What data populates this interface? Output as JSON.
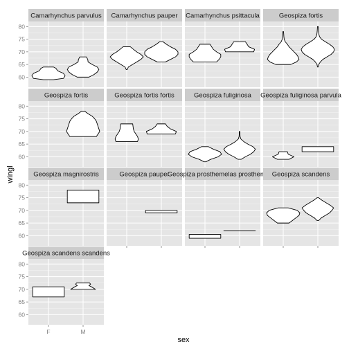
{
  "chart_data": {
    "type": "violin",
    "xlabel": "sex",
    "ylabel": "wingl",
    "categories": [
      "F",
      "M"
    ],
    "ylim": [
      56,
      82
    ],
    "yticks": [
      60,
      65,
      70,
      75,
      80
    ],
    "colors": {
      "panel_bg": "#e5e5e5",
      "strip_bg": "#cccccc",
      "grid_major": "#ffffff",
      "grid_minor": "#f2f2f2",
      "violin_fill": "#ffffff",
      "violin_stroke": "#000000"
    },
    "panels": [
      {
        "species": "Camarhynchus parvulus",
        "violins": {
          "F": {
            "min": 59,
            "max": 64,
            "profile": [
              [
                59,
                0.3
              ],
              [
                59.5,
                0.9
              ],
              [
                60.5,
                1.0
              ],
              [
                61.5,
                0.9
              ],
              [
                62.5,
                0.55
              ],
              [
                63.5,
                0.45
              ],
              [
                64,
                0.3
              ]
            ]
          },
          "M": {
            "min": 60,
            "max": 68,
            "profile": [
              [
                60,
                0.35
              ],
              [
                61,
                0.65
              ],
              [
                62,
                0.85
              ],
              [
                63,
                0.95
              ],
              [
                64,
                0.85
              ],
              [
                65,
                0.55
              ],
              [
                66,
                0.3
              ],
              [
                67,
                0.28
              ],
              [
                68,
                0.2
              ]
            ]
          }
        }
      },
      {
        "species": "Camarhynchus pauper",
        "violins": {
          "F": {
            "min": 63,
            "max": 72,
            "profile": [
              [
                63,
                0.03
              ],
              [
                64,
                0.1
              ],
              [
                65,
                0.35
              ],
              [
                66,
                0.6
              ],
              [
                67,
                0.85
              ],
              [
                68,
                1.0
              ],
              [
                69,
                0.85
              ],
              [
                70,
                0.6
              ],
              [
                71,
                0.4
              ],
              [
                72,
                0.22
              ]
            ]
          },
          "M": {
            "min": 66,
            "max": 74,
            "profile": [
              [
                66,
                0.25
              ],
              [
                67,
                0.55
              ],
              [
                68,
                0.85
              ],
              [
                69,
                1.0
              ],
              [
                70,
                1.0
              ],
              [
                71,
                0.85
              ],
              [
                72,
                0.55
              ],
              [
                73,
                0.3
              ],
              [
                74,
                0.1
              ]
            ]
          }
        }
      },
      {
        "species": "Camarhynchus psittacula",
        "violins": {
          "F": {
            "min": 66,
            "max": 73,
            "profile": [
              [
                66,
                0.7
              ],
              [
                67,
                0.85
              ],
              [
                68,
                0.95
              ],
              [
                69,
                0.95
              ],
              [
                70,
                0.7
              ],
              [
                71,
                0.5
              ],
              [
                72,
                0.4
              ],
              [
                73,
                0.3
              ]
            ]
          },
          "M": {
            "min": 70,
            "max": 74,
            "profile": [
              [
                70,
                0.85
              ],
              [
                71,
                0.9
              ],
              [
                72,
                0.55
              ],
              [
                73,
                0.45
              ],
              [
                74,
                0.35
              ]
            ]
          }
        }
      },
      {
        "species": "Geospiza fortis",
        "violins": {
          "F": {
            "min": 65,
            "max": 78,
            "profile": [
              [
                65,
                0.45
              ],
              [
                66,
                0.8
              ],
              [
                67,
                0.95
              ],
              [
                68,
                0.9
              ],
              [
                69,
                0.8
              ],
              [
                70,
                0.65
              ],
              [
                71,
                0.5
              ],
              [
                72,
                0.35
              ],
              [
                73,
                0.25
              ],
              [
                74,
                0.12
              ],
              [
                75,
                0.06
              ],
              [
                76,
                0.04
              ],
              [
                77,
                0.03
              ],
              [
                78,
                0.02
              ]
            ]
          },
          "M": {
            "min": 64,
            "max": 80,
            "profile": [
              [
                64,
                0.02
              ],
              [
                65,
                0.05
              ],
              [
                66,
                0.15
              ],
              [
                67,
                0.3
              ],
              [
                68,
                0.55
              ],
              [
                69,
                0.8
              ],
              [
                70,
                0.95
              ],
              [
                71,
                1.0
              ],
              [
                72,
                0.9
              ],
              [
                73,
                0.7
              ],
              [
                74,
                0.45
              ],
              [
                75,
                0.22
              ],
              [
                76,
                0.1
              ],
              [
                77,
                0.06
              ],
              [
                78,
                0.04
              ],
              [
                79,
                0.03
              ],
              [
                80,
                0.02
              ]
            ]
          }
        }
      },
      {
        "species": "Geospiza fortis",
        "violins": {
          "M": {
            "min": 68,
            "max": 78,
            "profile": [
              [
                68,
                0.8
              ],
              [
                69,
                0.9
              ],
              [
                70,
                1.0
              ],
              [
                71,
                0.95
              ],
              [
                72,
                0.9
              ],
              [
                73,
                0.85
              ],
              [
                74,
                0.8
              ],
              [
                75,
                0.7
              ],
              [
                76,
                0.55
              ],
              [
                77,
                0.3
              ],
              [
                78,
                0.1
              ]
            ]
          }
        }
      },
      {
        "species": "Geospiza fortis fortis",
        "violins": {
          "F": {
            "min": 66,
            "max": 73,
            "profile": [
              [
                66,
                0.65
              ],
              [
                67,
                0.7
              ],
              [
                68,
                0.65
              ],
              [
                69,
                0.55
              ],
              [
                70,
                0.45
              ],
              [
                71,
                0.4
              ],
              [
                72,
                0.38
              ],
              [
                73,
                0.36
              ]
            ]
          },
          "M": {
            "min": 69,
            "max": 73,
            "profile": [
              [
                69,
                0.85
              ],
              [
                70,
                0.9
              ],
              [
                71,
                0.55
              ],
              [
                72,
                0.35
              ],
              [
                73,
                0.25
              ]
            ]
          }
        }
      },
      {
        "species": "Geospiza fuliginosa",
        "violins": {
          "F": {
            "min": 58,
            "max": 64,
            "profile": [
              [
                58,
                0.05
              ],
              [
                59,
                0.35
              ],
              [
                60,
                0.8
              ],
              [
                61,
                1.0
              ],
              [
                62,
                0.9
              ],
              [
                63,
                0.5
              ],
              [
                64,
                0.2
              ]
            ]
          },
          "M": {
            "min": 59,
            "max": 70,
            "profile": [
              [
                59,
                0.1
              ],
              [
                60,
                0.35
              ],
              [
                61,
                0.65
              ],
              [
                62,
                0.85
              ],
              [
                63,
                0.95
              ],
              [
                64,
                0.8
              ],
              [
                65,
                0.5
              ],
              [
                66,
                0.25
              ],
              [
                67,
                0.08
              ],
              [
                68,
                0.03
              ],
              [
                69,
                0.02
              ],
              [
                70,
                0.02
              ]
            ]
          }
        }
      },
      {
        "species": "Geospiza fuliginosa parvula",
        "violins": {
          "F": {
            "min": 59,
            "max": 62,
            "profile": [
              [
                59,
                0.35
              ],
              [
                60,
                0.65
              ],
              [
                61,
                0.3
              ],
              [
                62,
                0.25
              ]
            ]
          },
          "M": {
            "min": 62,
            "max": 64,
            "profile": [
              [
                62,
                0.95
              ],
              [
                63,
                0.95
              ],
              [
                64,
                0.95
              ]
            ]
          }
        }
      },
      {
        "species": "Geospiza magnirostris",
        "violins": {
          "M": {
            "min": 73,
            "max": 78,
            "profile": [
              [
                73,
                0.95
              ],
              [
                74,
                0.95
              ],
              [
                75,
                0.95
              ],
              [
                76,
                0.95
              ],
              [
                77,
                0.95
              ],
              [
                78,
                0.95
              ]
            ]
          }
        }
      },
      {
        "species": "Geospiza pauper",
        "violins": {
          "M": {
            "min": 69,
            "max": 70,
            "profile": [
              [
                69,
                0.95
              ],
              [
                70,
                0.95
              ]
            ]
          }
        }
      },
      {
        "species": "Geospiza prosthemelas prosthemelas",
        "violins": {
          "F": {
            "min": 59,
            "max": 60.5,
            "profile": [
              [
                59,
                0.95
              ],
              [
                60.5,
                0.95
              ]
            ]
          },
          "M": {
            "min": 62,
            "max": 62,
            "profile": [
              [
                62,
                0.95
              ]
            ]
          }
        }
      },
      {
        "species": "Geospiza scandens",
        "violins": {
          "F": {
            "min": 65,
            "max": 71,
            "profile": [
              [
                65,
                0.35
              ],
              [
                66,
                0.55
              ],
              [
                67,
                0.75
              ],
              [
                68,
                0.95
              ],
              [
                69,
                1.0
              ],
              [
                70,
                0.85
              ],
              [
                71,
                0.3
              ]
            ]
          },
          "M": {
            "min": 66,
            "max": 75,
            "profile": [
              [
                66,
                0.05
              ],
              [
                67,
                0.2
              ],
              [
                68,
                0.45
              ],
              [
                69,
                0.7
              ],
              [
                70,
                0.85
              ],
              [
                71,
                0.95
              ],
              [
                72,
                0.75
              ],
              [
                73,
                0.5
              ],
              [
                74,
                0.25
              ],
              [
                75,
                0.05
              ]
            ]
          }
        }
      },
      {
        "species": "Geospiza scandens scandens",
        "violins": {
          "F": {
            "min": 67,
            "max": 71,
            "profile": [
              [
                67,
                0.95
              ],
              [
                68,
                0.95
              ],
              [
                69,
                0.95
              ],
              [
                70,
                0.95
              ],
              [
                71,
                0.95
              ]
            ]
          },
          "M": {
            "min": 70,
            "max": 72.5,
            "profile": [
              [
                70,
                0.75
              ],
              [
                71,
                0.5
              ],
              [
                71.5,
                0.35
              ],
              [
                72,
                0.45
              ],
              [
                72.5,
                0.4
              ]
            ]
          }
        }
      }
    ]
  }
}
